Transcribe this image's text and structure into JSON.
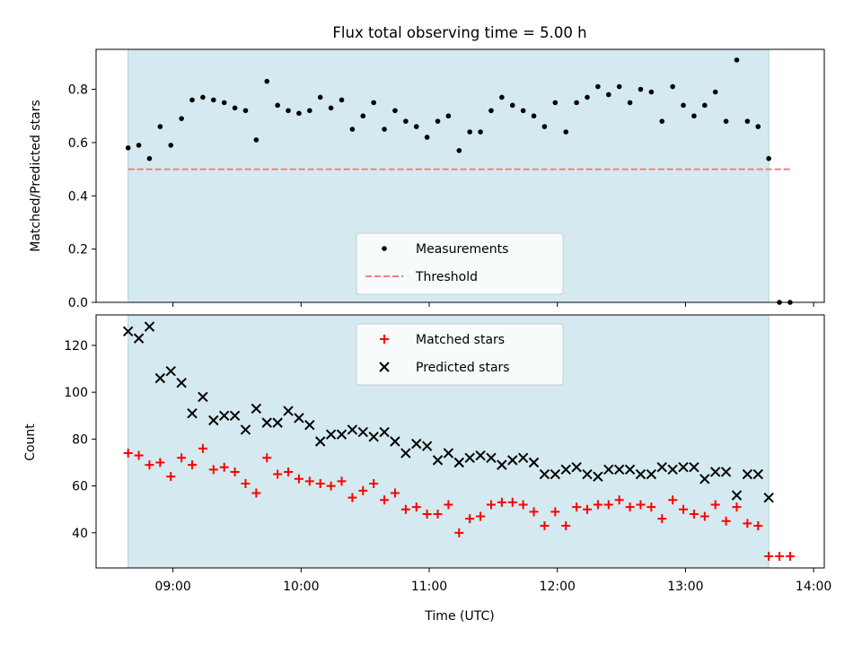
{
  "chart_data": [
    {
      "type": "scatter",
      "title": "Flux total observing time = 5.00 h",
      "xlabel": "",
      "ylabel": "Matched/Predicted stars",
      "xlim": [
        "08:24",
        "14:05"
      ],
      "ylim": [
        0,
        0.95
      ],
      "yticks": [
        0.0,
        0.2,
        0.4,
        0.6,
        0.8
      ],
      "yticklabels": [
        "0.0",
        "0.2",
        "0.4",
        "0.6",
        "0.8"
      ],
      "xticks": [
        "09:00",
        "10:00",
        "11:00",
        "12:00",
        "13:00",
        "14:00"
      ],
      "shaded_span": [
        "08:39",
        "13:39"
      ],
      "shade_color": "#d4eaf0",
      "legend": {
        "placement": "lower center",
        "entries": [
          "Measurements",
          "Threshold"
        ]
      },
      "threshold": {
        "name": "Threshold",
        "value": 0.5,
        "x_range": [
          "08:39",
          "13:49"
        ],
        "color": "#f08080"
      },
      "series": [
        {
          "name": "Measurements",
          "marker": "dot",
          "color": "#000000",
          "x": [
            "08:39",
            "08:44",
            "08:49",
            "08:54",
            "08:59",
            "09:04",
            "09:09",
            "09:14",
            "09:19",
            "09:24",
            "09:29",
            "09:34",
            "09:39",
            "09:44",
            "09:49",
            "09:54",
            "09:59",
            "10:04",
            "10:09",
            "10:14",
            "10:19",
            "10:24",
            "10:29",
            "10:34",
            "10:39",
            "10:44",
            "10:49",
            "10:54",
            "10:59",
            "11:04",
            "11:09",
            "11:14",
            "11:19",
            "11:24",
            "11:29",
            "11:34",
            "11:39",
            "11:44",
            "11:49",
            "11:54",
            "11:59",
            "12:04",
            "12:09",
            "12:14",
            "12:19",
            "12:24",
            "12:29",
            "12:34",
            "12:39",
            "12:44",
            "12:49",
            "12:54",
            "12:59",
            "13:04",
            "13:09",
            "13:14",
            "13:19",
            "13:24",
            "13:29",
            "13:34",
            "13:39",
            "13:44",
            "13:49"
          ],
          "y": [
            0.58,
            0.59,
            0.54,
            0.66,
            0.59,
            0.69,
            0.76,
            0.77,
            0.76,
            0.75,
            0.73,
            0.72,
            0.61,
            0.83,
            0.74,
            0.72,
            0.71,
            0.72,
            0.77,
            0.73,
            0.76,
            0.65,
            0.7,
            0.75,
            0.65,
            0.72,
            0.68,
            0.66,
            0.62,
            0.68,
            0.7,
            0.57,
            0.64,
            0.64,
            0.72,
            0.77,
            0.74,
            0.72,
            0.7,
            0.66,
            0.75,
            0.64,
            0.75,
            0.77,
            0.81,
            0.78,
            0.81,
            0.75,
            0.8,
            0.79,
            0.68,
            0.81,
            0.74,
            0.7,
            0.74,
            0.79,
            0.68,
            0.91,
            0.68,
            0.66,
            0.54,
            0.0,
            0.0
          ]
        }
      ]
    },
    {
      "type": "scatter",
      "title": "",
      "xlabel": "Time (UTC)",
      "ylabel": "Count",
      "xlim": [
        "08:24",
        "14:05"
      ],
      "ylim": [
        25,
        133
      ],
      "yticks": [
        40,
        60,
        80,
        100,
        120
      ],
      "yticklabels": [
        "40",
        "60",
        "80",
        "100",
        "120"
      ],
      "xticks": [
        "09:00",
        "10:00",
        "11:00",
        "12:00",
        "13:00",
        "14:00"
      ],
      "xticklabels": [
        "09:00",
        "10:00",
        "11:00",
        "12:00",
        "13:00",
        "14:00"
      ],
      "shaded_span": [
        "08:39",
        "13:39"
      ],
      "shade_color": "#d4eaf0",
      "legend": {
        "placement": "upper center",
        "entries": [
          "Matched stars",
          "Predicted stars"
        ]
      },
      "series": [
        {
          "name": "Matched stars",
          "marker": "plus",
          "color": "#ff0000",
          "x": [
            "08:39",
            "08:44",
            "08:49",
            "08:54",
            "08:59",
            "09:04",
            "09:09",
            "09:14",
            "09:19",
            "09:24",
            "09:29",
            "09:34",
            "09:39",
            "09:44",
            "09:49",
            "09:54",
            "09:59",
            "10:04",
            "10:09",
            "10:14",
            "10:19",
            "10:24",
            "10:29",
            "10:34",
            "10:39",
            "10:44",
            "10:49",
            "10:54",
            "10:59",
            "11:04",
            "11:09",
            "11:14",
            "11:19",
            "11:24",
            "11:29",
            "11:34",
            "11:39",
            "11:44",
            "11:49",
            "11:54",
            "11:59",
            "12:04",
            "12:09",
            "12:14",
            "12:19",
            "12:24",
            "12:29",
            "12:34",
            "12:39",
            "12:44",
            "12:49",
            "12:54",
            "12:59",
            "13:04",
            "13:09",
            "13:14",
            "13:19",
            "13:24",
            "13:29",
            "13:34",
            "13:39",
            "13:44",
            "13:49"
          ],
          "y": [
            74,
            73,
            69,
            70,
            64,
            72,
            69,
            76,
            67,
            68,
            66,
            61,
            57,
            72,
            65,
            66,
            63,
            62,
            61,
            60,
            62,
            55,
            58,
            61,
            54,
            57,
            50,
            51,
            48,
            48,
            52,
            40,
            46,
            47,
            52,
            53,
            53,
            52,
            49,
            43,
            49,
            43,
            51,
            50,
            52,
            52,
            54,
            51,
            52,
            51,
            46,
            54,
            50,
            48,
            47,
            52,
            45,
            51,
            44,
            43,
            30,
            30,
            30
          ]
        },
        {
          "name": "Predicted stars",
          "marker": "x",
          "color": "#000000",
          "x": [
            "08:39",
            "08:44",
            "08:49",
            "08:54",
            "08:59",
            "09:04",
            "09:09",
            "09:14",
            "09:19",
            "09:24",
            "09:29",
            "09:34",
            "09:39",
            "09:44",
            "09:49",
            "09:54",
            "09:59",
            "10:04",
            "10:09",
            "10:14",
            "10:19",
            "10:24",
            "10:29",
            "10:34",
            "10:39",
            "10:44",
            "10:49",
            "10:54",
            "10:59",
            "11:04",
            "11:09",
            "11:14",
            "11:19",
            "11:24",
            "11:29",
            "11:34",
            "11:39",
            "11:44",
            "11:49",
            "11:54",
            "11:59",
            "12:04",
            "12:09",
            "12:14",
            "12:19",
            "12:24",
            "12:29",
            "12:34",
            "12:39",
            "12:44",
            "12:49",
            "12:54",
            "12:59",
            "13:04",
            "13:09",
            "13:14",
            "13:19",
            "13:24",
            "13:29",
            "13:34",
            "13:39"
          ],
          "y": [
            126,
            123,
            128,
            106,
            109,
            104,
            91,
            98,
            88,
            90,
            90,
            84,
            93,
            87,
            87,
            92,
            89,
            86,
            79,
            82,
            82,
            84,
            83,
            81,
            83,
            79,
            74,
            78,
            77,
            71,
            74,
            70,
            72,
            73,
            72,
            69,
            71,
            72,
            70,
            65,
            65,
            67,
            68,
            65,
            64,
            67,
            67,
            67,
            65,
            65,
            68,
            67,
            68,
            68,
            63,
            66,
            66,
            56,
            65,
            65,
            55
          ]
        }
      ]
    }
  ]
}
